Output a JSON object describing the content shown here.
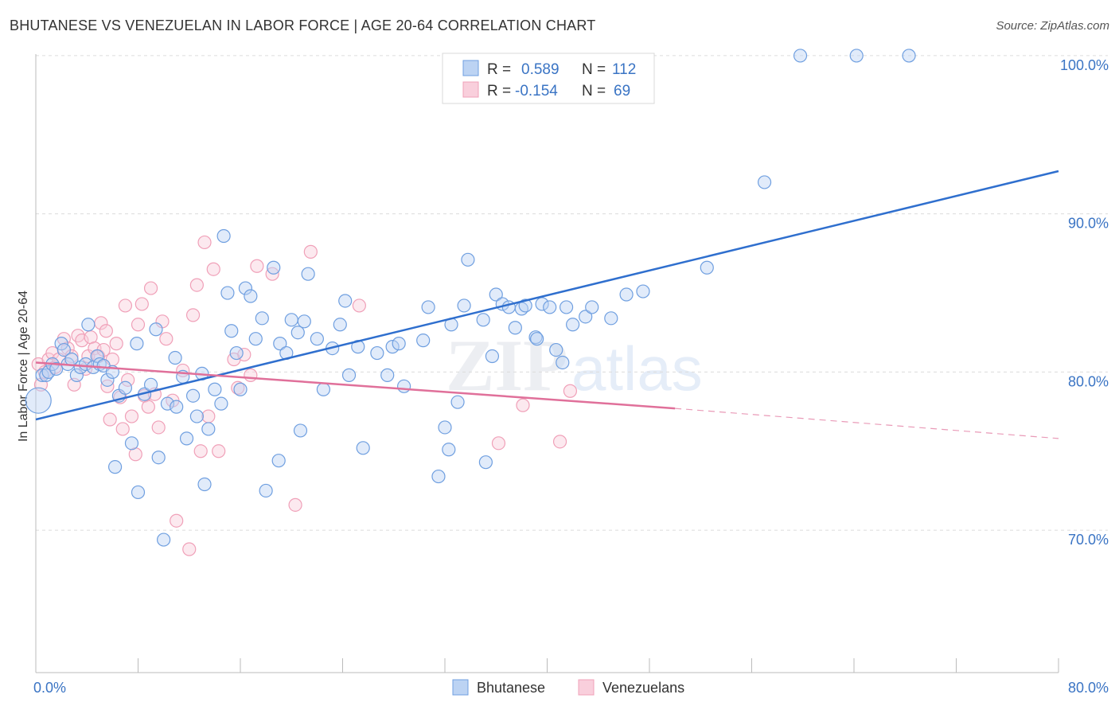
{
  "header": {
    "title": "BHUTANESE VS VENEZUELAN IN LABOR FORCE | AGE 20-64 CORRELATION CHART",
    "source": "Source: ZipAtlas.com"
  },
  "watermark": "ZIPatlas",
  "colors": {
    "bhutanese": "#6f9fe0",
    "bhutanese_line": "#2f6fce",
    "venezuelans": "#f0a0b8",
    "venezuelans_line": "#e0709a",
    "tick": "#3a74c4"
  },
  "chart_data": {
    "type": "scatter",
    "ylabel": "In Labor Force | Age 20-64",
    "xlim": [
      0,
      80
    ],
    "ylim": [
      61,
      100.5
    ],
    "x_ticks_labels": [
      "0.0%",
      "80.0%"
    ],
    "y_ticks": [
      70,
      80,
      90,
      100
    ],
    "y_tick_labels": [
      "70.0%",
      "80.0%",
      "90.0%",
      "100.0%"
    ],
    "grid": "horizontal dashed",
    "legend": {
      "position": "top-center",
      "entries": [
        {
          "r_label": "R =",
          "r_value": "0.589",
          "n_label": "N =",
          "n_value": "112"
        },
        {
          "r_label": "R =",
          "r_value": "-0.154",
          "n_label": "N =",
          "n_value": "69"
        }
      ]
    },
    "series": [
      {
        "name": "Bhutanese",
        "trend": {
          "x": [
            0,
            80
          ],
          "y": [
            77.0,
            92.7
          ]
        },
        "points": [
          [
            0.2,
            78.2
          ],
          [
            0.5,
            79.8
          ],
          [
            0.8,
            79.8
          ],
          [
            1.0,
            80.0
          ],
          [
            1.3,
            80.5
          ],
          [
            1.6,
            80.2
          ],
          [
            2.0,
            81.8
          ],
          [
            2.2,
            81.4
          ],
          [
            2.5,
            80.5
          ],
          [
            2.8,
            80.8
          ],
          [
            3.2,
            79.8
          ],
          [
            3.5,
            80.3
          ],
          [
            3.9,
            80.5
          ],
          [
            4.1,
            83.0
          ],
          [
            4.5,
            80.3
          ],
          [
            4.8,
            81.0
          ],
          [
            5.0,
            80.5
          ],
          [
            5.3,
            80.4
          ],
          [
            5.6,
            79.5
          ],
          [
            6.0,
            80.0
          ],
          [
            6.2,
            74.0
          ],
          [
            6.5,
            78.5
          ],
          [
            7.0,
            79.0
          ],
          [
            7.5,
            75.5
          ],
          [
            7.9,
            81.8
          ],
          [
            8.0,
            72.4
          ],
          [
            8.5,
            78.6
          ],
          [
            9.0,
            79.2
          ],
          [
            9.4,
            82.7
          ],
          [
            9.6,
            74.6
          ],
          [
            10.0,
            69.4
          ],
          [
            10.3,
            78.0
          ],
          [
            10.9,
            80.9
          ],
          [
            11.0,
            77.8
          ],
          [
            11.5,
            79.7
          ],
          [
            11.8,
            75.8
          ],
          [
            12.3,
            78.5
          ],
          [
            12.6,
            77.2
          ],
          [
            13.0,
            79.9
          ],
          [
            13.2,
            72.9
          ],
          [
            13.5,
            76.4
          ],
          [
            14.0,
            78.9
          ],
          [
            14.5,
            78.0
          ],
          [
            14.7,
            88.6
          ],
          [
            15.0,
            85.0
          ],
          [
            15.3,
            82.6
          ],
          [
            15.7,
            81.2
          ],
          [
            16.0,
            78.9
          ],
          [
            16.4,
            85.3
          ],
          [
            16.8,
            84.8
          ],
          [
            17.2,
            82.1
          ],
          [
            17.7,
            83.4
          ],
          [
            18.0,
            72.5
          ],
          [
            18.6,
            86.6
          ],
          [
            19.0,
            74.4
          ],
          [
            19.1,
            81.8
          ],
          [
            19.6,
            81.2
          ],
          [
            20.0,
            83.3
          ],
          [
            20.5,
            82.5
          ],
          [
            20.7,
            76.3
          ],
          [
            21.0,
            83.2
          ],
          [
            21.3,
            86.2
          ],
          [
            22.0,
            82.1
          ],
          [
            22.5,
            78.9
          ],
          [
            23.2,
            81.5
          ],
          [
            23.8,
            83.0
          ],
          [
            24.2,
            84.5
          ],
          [
            24.5,
            79.8
          ],
          [
            25.2,
            81.6
          ],
          [
            25.6,
            75.2
          ],
          [
            26.7,
            81.2
          ],
          [
            27.5,
            79.8
          ],
          [
            27.9,
            81.6
          ],
          [
            28.4,
            81.8
          ],
          [
            28.8,
            79.1
          ],
          [
            30.3,
            82.0
          ],
          [
            30.7,
            84.1
          ],
          [
            31.5,
            73.4
          ],
          [
            32.0,
            76.5
          ],
          [
            32.3,
            75.1
          ],
          [
            32.5,
            83.0
          ],
          [
            33.0,
            78.1
          ],
          [
            33.5,
            84.2
          ],
          [
            33.8,
            87.1
          ],
          [
            35.0,
            83.3
          ],
          [
            35.2,
            74.3
          ],
          [
            35.7,
            81.0
          ],
          [
            36.0,
            84.9
          ],
          [
            36.5,
            84.3
          ],
          [
            37.0,
            84.1
          ],
          [
            37.5,
            82.8
          ],
          [
            38.0,
            84.0
          ],
          [
            38.3,
            84.2
          ],
          [
            39.1,
            82.2
          ],
          [
            39.2,
            82.1
          ],
          [
            39.6,
            84.3
          ],
          [
            40.2,
            84.1
          ],
          [
            40.7,
            81.4
          ],
          [
            41.2,
            80.6
          ],
          [
            41.5,
            84.1
          ],
          [
            42.0,
            83.0
          ],
          [
            43.0,
            83.5
          ],
          [
            43.5,
            84.1
          ],
          [
            45.0,
            83.4
          ],
          [
            46.2,
            84.9
          ],
          [
            47.5,
            85.1
          ],
          [
            52.5,
            86.6
          ],
          [
            57.0,
            92.0
          ],
          [
            59.8,
            100.0
          ],
          [
            64.2,
            100.0
          ],
          [
            68.3,
            100.0
          ]
        ]
      },
      {
        "name": "Venezuelans",
        "trend": {
          "x": [
            0,
            50
          ],
          "y": [
            80.6,
            77.7
          ]
        },
        "trend_dashed": {
          "x": [
            50,
            80
          ],
          "y": [
            77.7,
            75.8
          ]
        },
        "points": [
          [
            0.2,
            80.5
          ],
          [
            0.4,
            79.2
          ],
          [
            0.7,
            80.0
          ],
          [
            1.0,
            80.8
          ],
          [
            1.3,
            81.2
          ],
          [
            1.5,
            80.3
          ],
          [
            1.8,
            80.8
          ],
          [
            2.2,
            82.1
          ],
          [
            2.5,
            81.5
          ],
          [
            2.8,
            81.0
          ],
          [
            3.0,
            79.2
          ],
          [
            3.3,
            82.3
          ],
          [
            3.6,
            82.0
          ],
          [
            3.9,
            80.2
          ],
          [
            4.1,
            81.0
          ],
          [
            4.3,
            82.2
          ],
          [
            4.6,
            81.5
          ],
          [
            4.9,
            81.0
          ],
          [
            5.1,
            83.1
          ],
          [
            5.3,
            81.4
          ],
          [
            5.5,
            82.6
          ],
          [
            5.6,
            79.1
          ],
          [
            5.8,
            77.0
          ],
          [
            6.0,
            80.8
          ],
          [
            6.3,
            81.8
          ],
          [
            6.6,
            78.4
          ],
          [
            6.8,
            76.4
          ],
          [
            7.0,
            84.2
          ],
          [
            7.2,
            79.5
          ],
          [
            7.5,
            77.2
          ],
          [
            7.8,
            74.8
          ],
          [
            8.0,
            83.0
          ],
          [
            8.3,
            84.3
          ],
          [
            8.5,
            78.5
          ],
          [
            8.8,
            77.8
          ],
          [
            9.0,
            85.3
          ],
          [
            9.3,
            78.6
          ],
          [
            9.6,
            76.5
          ],
          [
            9.9,
            83.2
          ],
          [
            10.2,
            82.1
          ],
          [
            10.7,
            78.2
          ],
          [
            11.0,
            70.6
          ],
          [
            11.5,
            80.1
          ],
          [
            12.0,
            68.8
          ],
          [
            12.3,
            83.6
          ],
          [
            12.6,
            85.5
          ],
          [
            12.9,
            75.0
          ],
          [
            13.2,
            88.2
          ],
          [
            13.5,
            77.2
          ],
          [
            13.9,
            86.5
          ],
          [
            14.3,
            75.0
          ],
          [
            15.5,
            80.8
          ],
          [
            15.8,
            79.0
          ],
          [
            16.3,
            81.1
          ],
          [
            16.8,
            79.8
          ],
          [
            17.3,
            86.7
          ],
          [
            18.5,
            86.2
          ],
          [
            20.3,
            71.6
          ],
          [
            21.5,
            87.6
          ],
          [
            25.3,
            84.2
          ],
          [
            36.2,
            75.5
          ],
          [
            38.1,
            77.9
          ],
          [
            41.0,
            75.6
          ],
          [
            41.8,
            78.8
          ]
        ]
      }
    ]
  },
  "bottom_legend": {
    "items": [
      {
        "label": "Bhutanese"
      },
      {
        "label": "Venezuelans"
      }
    ]
  }
}
